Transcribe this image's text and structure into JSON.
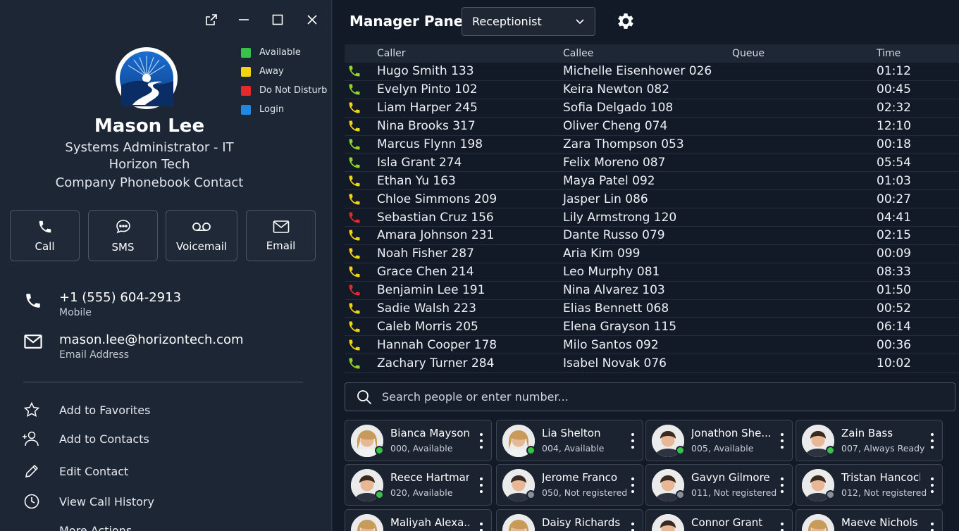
{
  "colors": {
    "available": "#38c24a",
    "away": "#f2d40f",
    "dnd": "#e32b2b",
    "login": "#1e88e5",
    "phone_green": "#8fd42a",
    "phone_yellow": "#f2d40f",
    "phone_red": "#e32b2b",
    "offline": "#8a8f97"
  },
  "window": {
    "icons": [
      "open-external-icon",
      "minimize-icon",
      "maximize-icon",
      "close-icon"
    ]
  },
  "legend": [
    {
      "label": "Available",
      "color": "#38c24a"
    },
    {
      "label": "Away",
      "color": "#f2d40f"
    },
    {
      "label": "Do Not Disturb",
      "color": "#e32b2b"
    },
    {
      "label": "Login",
      "color": "#1e88e5"
    }
  ],
  "contact": {
    "name": "Mason Lee",
    "title": "Systems Administrator - IT",
    "company": "Horizon Tech",
    "source": "Company Phonebook Contact",
    "phone": "+1 (555) 604-2913",
    "phone_label": "Mobile",
    "email": "mason.lee@horizontech.com",
    "email_label": "Email Address"
  },
  "actions": {
    "call": "Call",
    "sms": "SMS",
    "voicemail": "Voicemail",
    "email": "Email"
  },
  "menu": {
    "favorites": "Add to Favorites",
    "contacts": "Add to Contacts",
    "edit": "Edit Contact",
    "history": "View Call History",
    "more": "More Actions"
  },
  "panel": {
    "title": "Manager Panel",
    "role_selected": "Receptionist"
  },
  "calls": {
    "headers": {
      "caller": "Caller",
      "callee": "Callee",
      "queue": "Queue",
      "time": "Time"
    },
    "rows": [
      {
        "status": "green",
        "caller": "Hugo Smith 133",
        "callee": "Michelle Eisenhower 026",
        "queue": "",
        "time": "01:12"
      },
      {
        "status": "green",
        "caller": "Evelyn Pinto 102",
        "callee": "Keira Newton 082",
        "queue": "",
        "time": "00:45"
      },
      {
        "status": "yellow",
        "caller": "Liam Harper 245",
        "callee": "Sofia Delgado 108",
        "queue": "",
        "time": "02:32"
      },
      {
        "status": "yellow",
        "caller": "Nina Brooks 317",
        "callee": "Oliver Cheng 074",
        "queue": "",
        "time": "12:10"
      },
      {
        "status": "green",
        "caller": "Marcus Flynn 198",
        "callee": "Zara Thompson 053",
        "queue": "",
        "time": "00:18"
      },
      {
        "status": "green",
        "caller": "Isla Grant 274",
        "callee": "Felix Moreno 087",
        "queue": "",
        "time": "05:54"
      },
      {
        "status": "yellow",
        "caller": "Ethan Yu 163",
        "callee": "Maya Patel 092",
        "queue": "",
        "time": "01:03"
      },
      {
        "status": "yellow",
        "caller": "Chloe Simmons 209",
        "callee": "Jasper Lin 086",
        "queue": "",
        "time": "00:27"
      },
      {
        "status": "red",
        "caller": "Sebastian Cruz 156",
        "callee": "Lily Armstrong 120",
        "queue": "",
        "time": "04:41"
      },
      {
        "status": "yellow",
        "caller": "Amara Johnson 231",
        "callee": "Dante Russo 079",
        "queue": "",
        "time": "02:15"
      },
      {
        "status": "yellow",
        "caller": "Noah Fisher 287",
        "callee": "Aria Kim 099",
        "queue": "",
        "time": "00:09"
      },
      {
        "status": "yellow",
        "caller": "Grace Chen 214",
        "callee": "Leo Murphy 081",
        "queue": "",
        "time": "08:33"
      },
      {
        "status": "red",
        "caller": "Benjamin Lee 191",
        "callee": "Nina Alvarez 103",
        "queue": "",
        "time": "01:50"
      },
      {
        "status": "yellow",
        "caller": "Sadie Walsh 223",
        "callee": "Elias Bennett 068",
        "queue": "",
        "time": "00:52"
      },
      {
        "status": "yellow",
        "caller": "Caleb Morris 205",
        "callee": "Elena Grayson 115",
        "queue": "",
        "time": "06:14"
      },
      {
        "status": "yellow",
        "caller": "Hannah Cooper 178",
        "callee": "Milo Santos 092",
        "queue": "",
        "time": "00:36"
      },
      {
        "status": "green",
        "caller": "Zachary Turner 284",
        "callee": "Isabel Novak 076",
        "queue": "",
        "time": "10:02"
      }
    ]
  },
  "search": {
    "placeholder": "Search people or enter number..."
  },
  "people": [
    {
      "name": "Bianca Mayson",
      "status": "000, Available",
      "presence": "available",
      "gender": "f"
    },
    {
      "name": "Lia Shelton",
      "status": "004, Available",
      "presence": "available",
      "gender": "f"
    },
    {
      "name": "Jonathon She...",
      "status": "005, Available",
      "presence": "available",
      "gender": "m"
    },
    {
      "name": "Zain Bass",
      "status": "007, Always Ready",
      "presence": "available",
      "gender": "m"
    },
    {
      "name": "Reece Hartman",
      "status": "020, Available",
      "presence": "available",
      "gender": "m"
    },
    {
      "name": "Jerome Franco",
      "status": "050, Not registered",
      "presence": "offline",
      "gender": "m"
    },
    {
      "name": "Gavyn Gilmore",
      "status": "011, Not registered",
      "presence": "offline",
      "gender": "m"
    },
    {
      "name": "Tristan Hancock",
      "status": "012, Not registered",
      "presence": "offline",
      "gender": "m"
    },
    {
      "name": "Maliyah Alexa...",
      "status": "",
      "presence": "",
      "gender": "f"
    },
    {
      "name": "Daisy Richards",
      "status": "",
      "presence": "",
      "gender": "f"
    },
    {
      "name": "Connor Grant",
      "status": "",
      "presence": "",
      "gender": "m"
    },
    {
      "name": "Maeve Nichols",
      "status": "",
      "presence": "",
      "gender": "f"
    }
  ]
}
